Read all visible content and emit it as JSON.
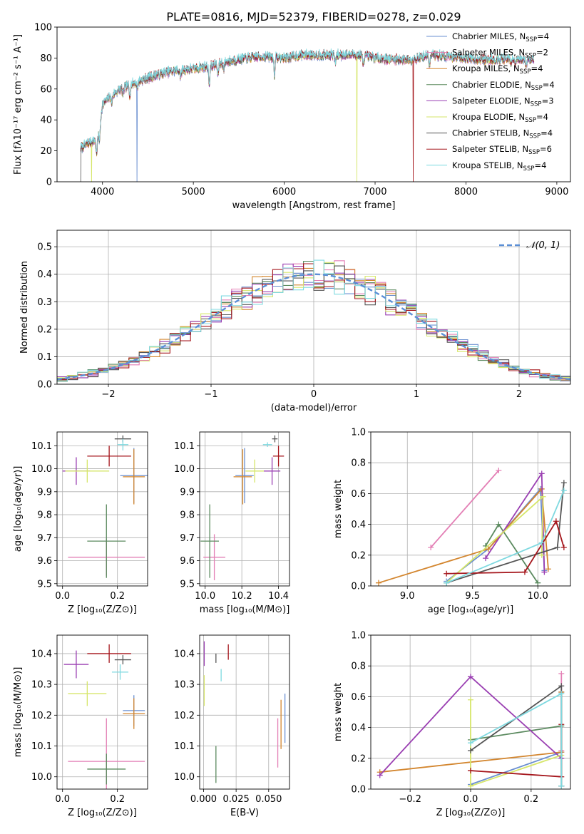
{
  "title": "PLATE=0816, MJD=52379, FIBERID=0278, z=0.029",
  "colors": {
    "Chabrier MILES": "#6a8fd0",
    "Salpeter MILES": "#e37fb5",
    "Kroupa MILES": "#d3862f",
    "Chabrier ELODIE": "#5b8a5f",
    "Salpeter ELODIE": "#9a3fb2",
    "Kroupa ELODIE": "#d6e66a",
    "Chabrier STELIB": "#555555",
    "Salpeter STELIB": "#a5161c",
    "Kroupa STELIB": "#7fd9e0",
    "normal": "#5b8fd6"
  },
  "chart_data": [
    {
      "type": "line",
      "title": "PLATE=0816, MJD=52379, FIBERID=0278, z=0.029",
      "xlabel": "wavelength [Angstrom, rest frame]",
      "ylabel": "Flux [fλ10⁻¹⁷ erg cm⁻² s⁻¹ A⁻¹]",
      "xlim": [
        3500,
        9150
      ],
      "ylim": [
        0,
        100
      ],
      "xticks": [
        "4000",
        "5000",
        "6000",
        "7000",
        "8000",
        "9000"
      ],
      "yticks": [
        "0",
        "20",
        "40",
        "60",
        "80",
        "100"
      ],
      "legend_position": "top-right",
      "legend": [
        "Chabrier MILES, N_SSP=4",
        "Salpeter MILES, N_SSP=2",
        "Kroupa MILES, N_SSP=4",
        "Chabrier ELODIE, N_SSP=4",
        "Salpeter ELODIE, N_SSP=3",
        "Kroupa ELODIE, N_SSP=4",
        "Chabrier STELIB, N_SSP=4",
        "Salpeter STELIB, N_SSP=6",
        "Kroupa STELIB, N_SSP=4"
      ],
      "legend_main": [
        "Chabrier MILES, N",
        "Salpeter MILES, N",
        "Kroupa MILES, N",
        "Chabrier ELODIE, N",
        "Salpeter ELODIE, N",
        "Kroupa ELODIE, N",
        "Chabrier STELIB, N",
        "Salpeter STELIB, N",
        "Kroupa STELIB, N"
      ],
      "legend_sub": "SSP",
      "legend_n": [
        "=4",
        "=2",
        "=4",
        "=4",
        "=3",
        "=4",
        "=4",
        "=6",
        "=4"
      ],
      "continuum": [
        [
          3760,
          22
        ],
        [
          3850,
          25
        ],
        [
          3950,
          28
        ],
        [
          4000,
          50
        ],
        [
          4100,
          56
        ],
        [
          4200,
          60
        ],
        [
          4400,
          65
        ],
        [
          4600,
          69
        ],
        [
          4800,
          72
        ],
        [
          5000,
          73
        ],
        [
          5200,
          75
        ],
        [
          5400,
          78
        ],
        [
          5600,
          80
        ],
        [
          5800,
          81
        ],
        [
          6000,
          80
        ],
        [
          6200,
          82
        ],
        [
          6400,
          82
        ],
        [
          6600,
          82
        ],
        [
          6800,
          82
        ],
        [
          7000,
          80
        ],
        [
          7200,
          79
        ],
        [
          7400,
          79
        ],
        [
          7600,
          82
        ],
        [
          7800,
          81
        ],
        [
          8000,
          80
        ],
        [
          8200,
          79
        ],
        [
          8400,
          79
        ],
        [
          8600,
          79
        ],
        [
          8750,
          79
        ]
      ],
      "absorption_lines": [
        [
          3934,
          9
        ],
        [
          3969,
          9
        ],
        [
          4102,
          6
        ],
        [
          4226,
          5
        ],
        [
          4300,
          7
        ],
        [
          4383,
          4
        ],
        [
          4861,
          5
        ],
        [
          5175,
          12
        ],
        [
          5270,
          7
        ],
        [
          5335,
          4
        ],
        [
          5892,
          11
        ],
        [
          6563,
          5
        ],
        [
          6870,
          6
        ],
        [
          7600,
          7
        ],
        [
          8498,
          3
        ],
        [
          8542,
          4
        ],
        [
          8662,
          4
        ]
      ],
      "noise_amplitude": 2.2,
      "drops": [
        {
          "model": "Kroupa ELODIE",
          "x": 6800
        },
        {
          "model": "Salpeter STELIB",
          "x": 7420
        },
        {
          "model": "Chabrier STELIB",
          "x": 3760
        },
        {
          "model": "Chabrier MILES",
          "x": 4380
        },
        {
          "model": "Kroupa ELODIE",
          "x": 3880
        }
      ]
    },
    {
      "type": "area",
      "xlabel": "(data-model)/error",
      "ylabel": "Normed distribution",
      "xlim": [
        -2.5,
        2.5
      ],
      "ylim": [
        0,
        0.56
      ],
      "xticks": [
        "−2",
        "−1",
        "0",
        "1",
        "2"
      ],
      "yticks": [
        "0.0",
        "0.1",
        "0.2",
        "0.3",
        "0.4",
        "0.5"
      ],
      "legend_label": "𝒩(0, 1)",
      "legend_position": "top-right",
      "bin_width": 0.1,
      "bin_start": -2.5,
      "gauss_peak": 0.4,
      "histogram_max_deviation": 0.1,
      "gaussian": [
        [
          -2.5,
          0.018
        ],
        [
          -2,
          0.054
        ],
        [
          -1.5,
          0.13
        ],
        [
          -1,
          0.242
        ],
        [
          -0.5,
          0.352
        ],
        [
          0,
          0.399
        ],
        [
          0.5,
          0.352
        ],
        [
          1,
          0.242
        ],
        [
          1.5,
          0.13
        ],
        [
          2,
          0.054
        ],
        [
          2.5,
          0.018
        ]
      ],
      "series": [
        "Chabrier MILES",
        "Salpeter MILES",
        "Kroupa MILES",
        "Chabrier ELODIE",
        "Salpeter ELODIE",
        "Kroupa ELODIE",
        "Chabrier STELIB",
        "Salpeter STELIB",
        "Kroupa STELIB"
      ]
    },
    {
      "type": "scatter",
      "xlabel": "Z [log₁₀(Z/Z⊙)]",
      "ylabel": "age  [log₁₀(age/yr)]",
      "xlim": [
        -0.02,
        0.31
      ],
      "ylim": [
        9.49,
        10.16
      ],
      "xticks": [
        "0.0",
        "0.2"
      ],
      "yticks": [
        "9.5",
        "9.6",
        "9.7",
        "9.8",
        "9.9",
        "10.0",
        "10.1"
      ],
      "points": [
        {
          "model": "Chabrier MILES",
          "x": 0.26,
          "xerr": 0.05,
          "y": 9.97,
          "yerr": 0.12
        },
        {
          "model": "Salpeter MILES",
          "x": 0.16,
          "xerr": 0.14,
          "y": 9.615,
          "yerr": 0.08
        },
        {
          "model": "Kroupa MILES",
          "x": 0.26,
          "xerr": 0.04,
          "y": 9.965,
          "yerr": 0.12
        },
        {
          "model": "Chabrier ELODIE",
          "x": 0.16,
          "xerr": 0.07,
          "y": 9.685,
          "yerr": 0.16
        },
        {
          "model": "Salpeter ELODIE",
          "x": 0.05,
          "xerr": 0.05,
          "y": 9.99,
          "yerr": 0.06
        },
        {
          "model": "Kroupa ELODIE",
          "x": 0.09,
          "xerr": 0.08,
          "y": 9.99,
          "yerr": 0.05
        },
        {
          "model": "Chabrier STELIB",
          "x": 0.22,
          "xerr": 0.03,
          "y": 10.13,
          "yerr": 0.015
        },
        {
          "model": "Salpeter STELIB",
          "x": 0.17,
          "xerr": 0.08,
          "y": 10.055,
          "yerr": 0.045
        },
        {
          "model": "Kroupa STELIB",
          "x": 0.22,
          "xerr": 0.02,
          "y": 10.105,
          "yerr": 0.025
        }
      ]
    },
    {
      "type": "scatter",
      "xlabel": "mass [log₁₀(M/M⊙)]",
      "ylabel": "",
      "xlim": [
        9.97,
        10.46
      ],
      "ylim": [
        9.49,
        10.16
      ],
      "xticks": [
        "10.0",
        "10.2",
        "10.4"
      ],
      "yticks": [
        "9.5",
        "9.6",
        "9.7",
        "9.8",
        "9.9",
        "10.0",
        "10.1"
      ],
      "points": [
        {
          "model": "Chabrier MILES",
          "x": 10.215,
          "xerr": 0.05,
          "y": 9.97,
          "yerr": 0.12
        },
        {
          "model": "Salpeter MILES",
          "x": 10.05,
          "xerr": 0.06,
          "y": 9.615,
          "yerr": 0.1
        },
        {
          "model": "Kroupa MILES",
          "x": 10.205,
          "xerr": 0.05,
          "y": 9.965,
          "yerr": 0.12
        },
        {
          "model": "Chabrier ELODIE",
          "x": 10.025,
          "xerr": 0.05,
          "y": 9.685,
          "yerr": 0.16
        },
        {
          "model": "Salpeter ELODIE",
          "x": 10.365,
          "xerr": 0.045,
          "y": 9.99,
          "yerr": 0.06
        },
        {
          "model": "Kroupa ELODIE",
          "x": 10.27,
          "xerr": 0.05,
          "y": 9.99,
          "yerr": 0.05
        },
        {
          "model": "Chabrier STELIB",
          "x": 10.38,
          "xerr": 0.015,
          "y": 10.13,
          "yerr": 0.015
        },
        {
          "model": "Salpeter STELIB",
          "x": 10.4,
          "xerr": 0.03,
          "y": 10.055,
          "yerr": 0.045
        },
        {
          "model": "Kroupa STELIB",
          "x": 10.34,
          "xerr": 0.025,
          "y": 10.105,
          "yerr": 0.01
        }
      ]
    },
    {
      "type": "line",
      "xlabel": "age  [log₁₀(age/yr)]",
      "ylabel": "mass weight",
      "xlim": [
        8.72,
        10.25
      ],
      "ylim": [
        0,
        1
      ],
      "xticks": [
        "9.0",
        "9.5",
        "10.0"
      ],
      "yticks": [
        "0.0",
        "0.2",
        "0.4",
        "0.6",
        "0.8",
        "1.0"
      ],
      "series": [
        {
          "model": "Chabrier MILES",
          "points": [
            [
              9.3,
              0.03
            ],
            [
              9.62,
              0.24
            ],
            [
              10.02,
              0.63
            ],
            [
              10.05,
              0.1
            ]
          ]
        },
        {
          "model": "Salpeter MILES",
          "points": [
            [
              9.18,
              0.25
            ],
            [
              9.7,
              0.75
            ]
          ]
        },
        {
          "model": "Kroupa MILES",
          "points": [
            [
              8.78,
              0.02
            ],
            [
              9.62,
              0.24
            ],
            [
              10.03,
              0.63
            ],
            [
              10.08,
              0.11
            ]
          ]
        },
        {
          "model": "Chabrier ELODIE",
          "points": [
            [
              9.6,
              0.26
            ],
            [
              9.7,
              0.4
            ],
            [
              10.0,
              0.02
            ]
          ]
        },
        {
          "model": "Salpeter ELODIE",
          "points": [
            [
              9.6,
              0.18
            ],
            [
              10.03,
              0.73
            ],
            [
              10.05,
              0.09
            ]
          ]
        },
        {
          "model": "Kroupa ELODIE",
          "points": [
            [
              9.3,
              0.02
            ],
            [
              10.04,
              0.58
            ],
            [
              10.03,
              0.2
            ]
          ]
        },
        {
          "model": "Chabrier STELIB",
          "points": [
            [
              9.3,
              0.02
            ],
            [
              10.15,
              0.25
            ],
            [
              10.2,
              0.67
            ]
          ]
        },
        {
          "model": "Salpeter STELIB",
          "points": [
            [
              9.3,
              0.08
            ],
            [
              9.9,
              0.09
            ],
            [
              10.14,
              0.42
            ],
            [
              10.2,
              0.25
            ]
          ]
        },
        {
          "model": "Kroupa STELIB",
          "points": [
            [
              9.3,
              0.02
            ],
            [
              10.03,
              0.28
            ],
            [
              10.2,
              0.62
            ]
          ]
        }
      ]
    },
    {
      "type": "scatter",
      "xlabel": "Z [log₁₀(Z/Z⊙)]",
      "ylabel": "mass [log₁₀(M/M⊙)]",
      "xlim": [
        -0.02,
        0.31
      ],
      "ylim": [
        9.96,
        10.46
      ],
      "xticks": [
        "0.0",
        "0.2"
      ],
      "yticks": [
        "10.0",
        "10.1",
        "10.2",
        "10.3",
        "10.4"
      ],
      "points": [
        {
          "model": "Chabrier MILES",
          "x": 0.26,
          "xerr": 0.04,
          "y": 10.215,
          "yerr": 0.05
        },
        {
          "model": "Salpeter MILES",
          "x": 0.16,
          "xerr": 0.14,
          "y": 10.05,
          "yerr": 0.14
        },
        {
          "model": "Kroupa MILES",
          "x": 0.26,
          "xerr": 0.04,
          "y": 10.205,
          "yerr": 0.05
        },
        {
          "model": "Chabrier ELODIE",
          "x": 0.16,
          "xerr": 0.07,
          "y": 10.025,
          "yerr": 0.05
        },
        {
          "model": "Salpeter ELODIE",
          "x": 0.05,
          "xerr": 0.045,
          "y": 10.365,
          "yerr": 0.045
        },
        {
          "model": "Kroupa ELODIE",
          "x": 0.09,
          "xerr": 0.07,
          "y": 10.27,
          "yerr": 0.04
        },
        {
          "model": "Chabrier STELIB",
          "x": 0.22,
          "xerr": 0.03,
          "y": 10.38,
          "yerr": 0.015
        },
        {
          "model": "Salpeter STELIB",
          "x": 0.17,
          "xerr": 0.08,
          "y": 10.4,
          "yerr": 0.03
        },
        {
          "model": "Kroupa STELIB",
          "x": 0.21,
          "xerr": 0.03,
          "y": 10.34,
          "yerr": 0.025
        }
      ]
    },
    {
      "type": "scatter",
      "xlabel": "E(B-V)",
      "ylabel": "",
      "xlim": [
        -0.003,
        0.066
      ],
      "ylim": [
        9.96,
        10.46
      ],
      "xticks": [
        "0.000",
        "0.025",
        "0.050"
      ],
      "yticks": [
        "10.0",
        "10.1",
        "10.2",
        "10.3",
        "10.4"
      ],
      "points": [
        {
          "model": "Chabrier MILES",
          "x": 0.0625,
          "xerr": 0.0,
          "y": 10.19,
          "yerr": 0.08
        },
        {
          "model": "Salpeter MILES",
          "x": 0.057,
          "xerr": 0.0,
          "y": 10.11,
          "yerr": 0.08
        },
        {
          "model": "Kroupa MILES",
          "x": 0.0595,
          "xerr": 0.0,
          "y": 10.17,
          "yerr": 0.08
        },
        {
          "model": "Chabrier ELODIE",
          "x": 0.0095,
          "xerr": 0.0,
          "y": 10.04,
          "yerr": 0.06
        },
        {
          "model": "Salpeter ELODIE",
          "x": 0.0005,
          "xerr": 0.0,
          "y": 10.4,
          "yerr": 0.04
        },
        {
          "model": "Kroupa ELODIE",
          "x": 0.0005,
          "xerr": 0.0,
          "y": 10.28,
          "yerr": 0.05
        },
        {
          "model": "Chabrier STELIB",
          "x": 0.0095,
          "xerr": 0.0,
          "y": 10.385,
          "yerr": 0.015
        },
        {
          "model": "Salpeter STELIB",
          "x": 0.019,
          "xerr": 0.0,
          "y": 10.405,
          "yerr": 0.025
        },
        {
          "model": "Kroupa STELIB",
          "x": 0.0135,
          "xerr": 0.0,
          "y": 10.33,
          "yerr": 0.02
        }
      ]
    },
    {
      "type": "line",
      "xlabel": "Z [log₁₀(Z/Z⊙)]",
      "ylabel": "mass weight",
      "xlim": [
        -0.33,
        0.33
      ],
      "ylim": [
        0,
        1
      ],
      "xticks": [
        "−0.2",
        "0.0",
        "0.2"
      ],
      "yticks": [
        "0.0",
        "0.2",
        "0.4",
        "0.6",
        "0.8",
        "1.0"
      ],
      "series": [
        {
          "model": "Chabrier MILES",
          "points": [
            [
              0.0,
              0.03
            ],
            [
              0.3,
              0.24
            ],
            [
              0.3,
              0.63
            ]
          ]
        },
        {
          "model": "Salpeter MILES",
          "points": [
            [
              0.3,
              0.25
            ],
            [
              0.3,
              0.75
            ]
          ]
        },
        {
          "model": "Kroupa MILES",
          "points": [
            [
              -0.3,
              0.11
            ],
            [
              0.3,
              0.24
            ],
            [
              0.3,
              0.63
            ]
          ]
        },
        {
          "model": "Chabrier ELODIE",
          "points": [
            [
              0.0,
              0.32
            ],
            [
              0.3,
              0.41
            ],
            [
              0.3,
              0.02
            ]
          ]
        },
        {
          "model": "Salpeter ELODIE",
          "points": [
            [
              -0.3,
              0.09
            ],
            [
              0.0,
              0.73
            ],
            [
              0.3,
              0.2
            ]
          ]
        },
        {
          "model": "Kroupa ELODIE",
          "points": [
            [
              0.0,
              0.58
            ],
            [
              0.0,
              0.02
            ],
            [
              0.3,
              0.22
            ]
          ]
        },
        {
          "model": "Chabrier STELIB",
          "points": [
            [
              0.0,
              0.25
            ],
            [
              0.3,
              0.67
            ],
            [
              0.3,
              0.02
            ]
          ]
        },
        {
          "model": "Salpeter STELIB",
          "points": [
            [
              0.0,
              0.12
            ],
            [
              0.3,
              0.08
            ],
            [
              0.3,
              0.42
            ]
          ]
        },
        {
          "model": "Kroupa STELIB",
          "points": [
            [
              0.0,
              0.3
            ],
            [
              0.3,
              0.62
            ],
            [
              0.3,
              0.02
            ]
          ]
        }
      ]
    }
  ]
}
